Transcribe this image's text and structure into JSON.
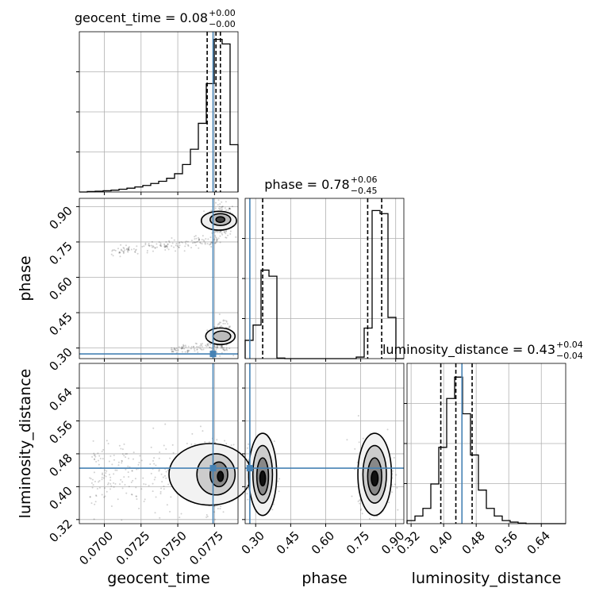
{
  "colors": {
    "truth": "#4682b4",
    "hist": "#000000",
    "grid": "#b0b0b0",
    "samples": "#000000"
  },
  "chart_data": {
    "type": "corner",
    "parameters": [
      "geocent_time",
      "phase",
      "luminosity_distance"
    ],
    "truths": {
      "geocent_time": 0.0774,
      "phase": 0.275,
      "luminosity_distance": 0.445
    },
    "titles": [
      {
        "param": "geocent_time",
        "prefix": "geocent_time = ",
        "value": "0.08",
        "plus": "+0.00",
        "minus": "−0.00"
      },
      {
        "param": "phase",
        "prefix": "phase = ",
        "value": "0.78",
        "plus": "+0.06",
        "minus": "−0.45"
      },
      {
        "param": "luminosity_distance",
        "prefix": "luminosity_distance = ",
        "value": "0.43",
        "plus": "+0.04",
        "minus": "−0.04"
      }
    ],
    "axis_labels": {
      "geocent_time": "geocent_time",
      "phase": "phase",
      "luminosity_distance": "luminosity_distance"
    },
    "axes": {
      "geocent_time": {
        "range": [
          0.0683,
          0.0791
        ],
        "ticks": [
          0.07,
          0.0725,
          0.075,
          0.0775
        ],
        "tick_labels": [
          "0.0700",
          "0.0725",
          "0.0750",
          "0.0775"
        ]
      },
      "phase": {
        "range": [
          0.255,
          0.935
        ],
        "ticks": [
          0.3,
          0.45,
          0.6,
          0.75,
          0.9
        ],
        "tick_labels": [
          "0.30",
          "0.45",
          "0.60",
          "0.75",
          "0.90"
        ]
      },
      "luminosity_distance": {
        "range": [
          0.31,
          0.7
        ],
        "ticks": [
          0.32,
          0.4,
          0.48,
          0.56,
          0.64
        ],
        "tick_labels": [
          "0.32",
          "0.40",
          "0.48",
          "0.56",
          "0.64"
        ]
      }
    },
    "quantiles": {
      "geocent_time": [
        0.077,
        0.0776,
        0.0779
      ],
      "phase": [
        0.33,
        0.78,
        0.84
      ],
      "luminosity_distance": [
        0.393,
        0.43,
        0.47
      ]
    },
    "histograms": {
      "geocent_time": {
        "edges": [
          0.0683,
          0.06884,
          0.06938,
          0.06992,
          0.07046,
          0.071,
          0.07154,
          0.07208,
          0.07262,
          0.07316,
          0.0737,
          0.07424,
          0.07478,
          0.07532,
          0.07586,
          0.0764,
          0.07694,
          0.07748,
          0.07802,
          0.07856,
          0.0791
        ],
        "counts": [
          0.0,
          0.3,
          0.5,
          0.8,
          1.2,
          1.8,
          2.5,
          3.3,
          4.3,
          5.6,
          7.0,
          9.0,
          12.0,
          18.0,
          28.0,
          45.0,
          71.0,
          100.0,
          97.0,
          31.0
        ],
        "ylim": [
          0,
          105
        ]
      },
      "phase": {
        "edges": [
          0.255,
          0.289,
          0.323,
          0.357,
          0.391,
          0.425,
          0.459,
          0.493,
          0.527,
          0.561,
          0.595,
          0.629,
          0.663,
          0.697,
          0.731,
          0.765,
          0.799,
          0.833,
          0.867,
          0.901,
          0.935
        ],
        "counts": [
          12.0,
          22.0,
          58.0,
          54.0,
          0.4,
          0.0,
          0.0,
          0.0,
          0.0,
          0.0,
          0.0,
          0.0,
          0.0,
          0.0,
          1.0,
          20.0,
          97.0,
          95.0,
          27.0,
          0.0
        ],
        "ylim": [
          0,
          105
        ]
      },
      "luminosity_distance": {
        "edges": [
          0.31,
          0.3295,
          0.349,
          0.3685,
          0.388,
          0.4075,
          0.427,
          0.4465,
          0.466,
          0.4855,
          0.505,
          0.5245,
          0.544,
          0.5635,
          0.583,
          0.6025,
          0.622,
          0.6415,
          0.661,
          0.6805,
          0.7
        ],
        "counts": [
          2.0,
          5.0,
          10.0,
          26.0,
          50.0,
          82.0,
          96.0,
          72.0,
          45.0,
          22.0,
          10.0,
          5.0,
          2.0,
          1.0,
          0.4,
          0.0,
          0.0,
          0.0,
          0.0,
          0.0
        ],
        "ylim": [
          0,
          105
        ]
      }
    },
    "grid": true
  }
}
